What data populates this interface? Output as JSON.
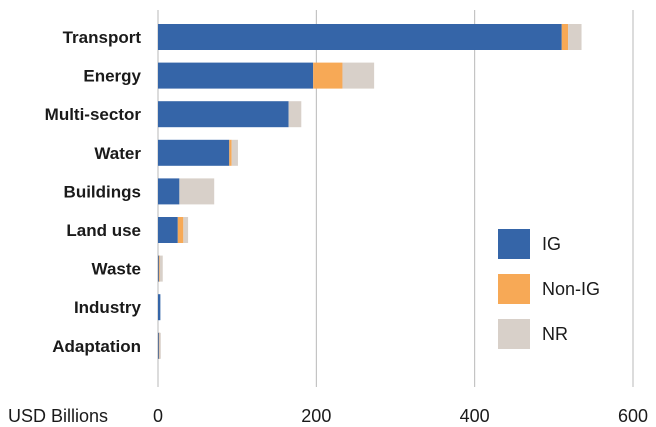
{
  "chart_data": {
    "type": "bar",
    "orientation": "horizontal",
    "stacked": true,
    "categories": [
      "Transport",
      "Energy",
      "Multi-sector",
      "Water",
      "Buildings",
      "Land use",
      "Waste",
      "Industry",
      "Adaptation"
    ],
    "series": [
      {
        "name": "IG",
        "color": "#3565a8",
        "values": [
          510,
          196,
          165,
          90,
          27,
          25,
          1,
          3,
          1
        ]
      },
      {
        "name": "Non-IG",
        "color": "#f7a956",
        "values": [
          8,
          37,
          0,
          3,
          0,
          7,
          1,
          0,
          0.5
        ]
      },
      {
        "name": "NR",
        "color": "#d8d0c9",
        "values": [
          17,
          40,
          16,
          8,
          44,
          6,
          4,
          0,
          2
        ]
      }
    ],
    "xlabel": "USD Billions",
    "xlim": [
      0,
      600
    ],
    "xticks": [
      "0",
      "200",
      "400",
      "600"
    ],
    "grid": "vertical",
    "legend_position": "lower-right"
  }
}
